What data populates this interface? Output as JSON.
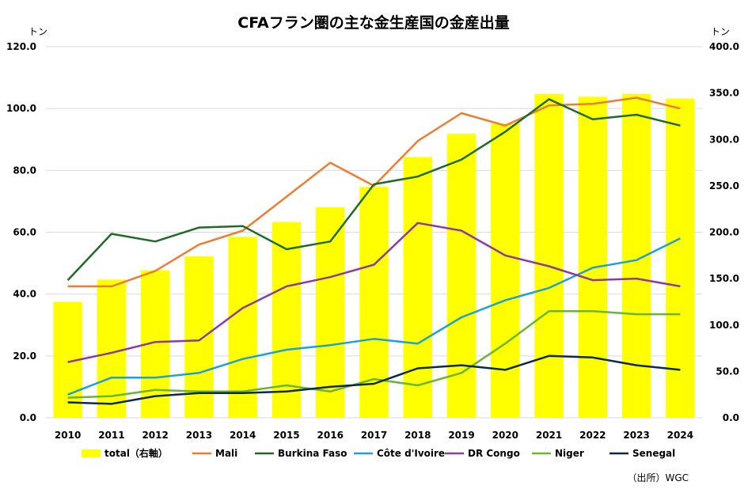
{
  "chart_data": {
    "type": "bar+line",
    "title": "CFAフラン圏の主な金生産国の金産出量",
    "left_axis_unit": "トン",
    "right_axis_unit": "トン",
    "categories": [
      "2010",
      "2011",
      "2012",
      "2013",
      "2014",
      "2015",
      "2016",
      "2017",
      "2018",
      "2019",
      "2020",
      "2021",
      "2022",
      "2023",
      "2024"
    ],
    "left_ylim": [
      0,
      120
    ],
    "left_ticks": [
      "0.0",
      "20.0",
      "40.0",
      "60.0",
      "80.0",
      "100.0",
      "120.0"
    ],
    "right_ylim": [
      0,
      400
    ],
    "right_ticks": [
      "0.0",
      "50.0",
      "100.0",
      "150.0",
      "200.0",
      "250.0",
      "300.0",
      "350.0",
      "400.0"
    ],
    "bars": {
      "name": "total（右軸）",
      "color": "#ffff00",
      "values": [
        125,
        149,
        159,
        174,
        195,
        211,
        227,
        249,
        281,
        306,
        317,
        349,
        346,
        349,
        344
      ]
    },
    "series": [
      {
        "name": "Mali",
        "color": "#ed7d31",
        "values": [
          42.5,
          42.5,
          47.5,
          56.0,
          60.5,
          71.5,
          82.5,
          75.0,
          89.5,
          98.5,
          94.5,
          101.0,
          101.5,
          103.5,
          100.0
        ]
      },
      {
        "name": "Burkina Faso",
        "color": "#1e6b26",
        "values": [
          44.5,
          59.5,
          57.0,
          61.5,
          62.0,
          54.5,
          57.0,
          75.5,
          78.0,
          83.5,
          92.5,
          103.0,
          96.5,
          98.0,
          94.5
        ]
      },
      {
        "name": "Côte d'Ivoire",
        "color": "#1ea0d8",
        "values": [
          7.5,
          13.0,
          13.0,
          14.5,
          19.0,
          22.0,
          23.5,
          25.5,
          24.0,
          32.5,
          38.0,
          42.0,
          48.5,
          51.0,
          58.0
        ]
      },
      {
        "name": "DR Congo",
        "color": "#8e3a9e",
        "values": [
          18.0,
          21.0,
          24.5,
          25.0,
          35.5,
          42.5,
          45.5,
          49.5,
          63.0,
          60.5,
          52.5,
          49.0,
          44.5,
          45.0,
          42.5
        ]
      },
      {
        "name": "Niger",
        "color": "#6ab534",
        "values": [
          6.5,
          7.0,
          9.0,
          8.5,
          8.5,
          10.5,
          8.5,
          12.5,
          10.5,
          14.5,
          24.0,
          34.5,
          34.5,
          33.5,
          33.5
        ]
      },
      {
        "name": "Senegal",
        "color": "#0d2a44",
        "values": [
          5.0,
          4.5,
          7.0,
          8.0,
          8.0,
          8.5,
          10.0,
          11.0,
          16.0,
          17.0,
          15.5,
          20.0,
          19.5,
          17.0,
          15.5
        ]
      }
    ],
    "legend_position": "bottom",
    "grid": true
  },
  "source": "（出所）WGC"
}
